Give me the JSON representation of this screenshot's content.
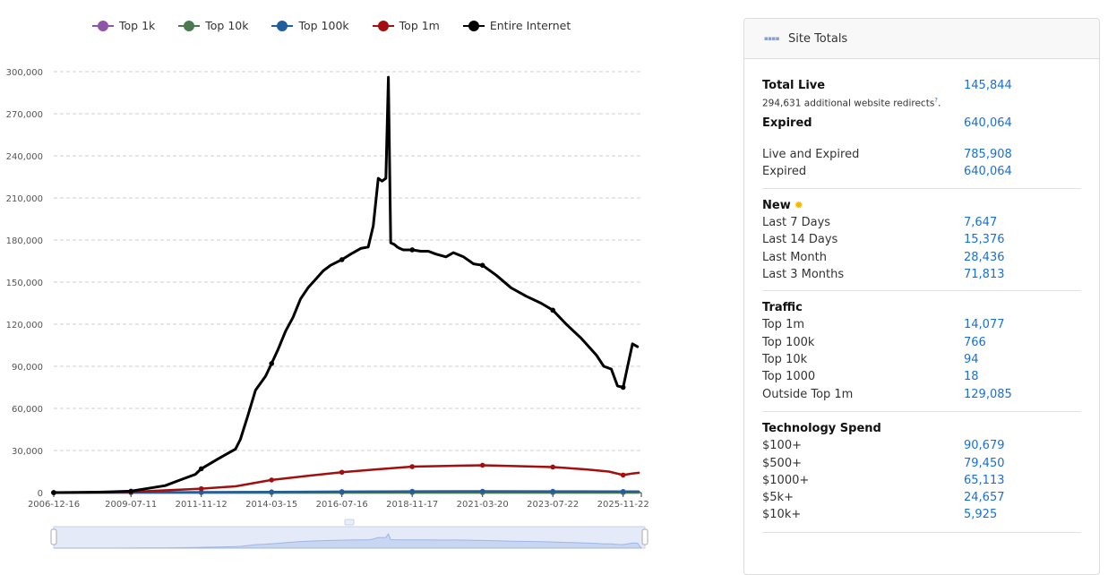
{
  "legend": [
    {
      "name": "Top 1k",
      "color": "#8e54a8"
    },
    {
      "name": "Top 10k",
      "color": "#4b7a50"
    },
    {
      "name": "Top 100k",
      "color": "#245d9e"
    },
    {
      "name": "Top 1m",
      "color": "#a30f0f"
    },
    {
      "name": "Entire Internet",
      "color": "#000000"
    }
  ],
  "chart_data": {
    "type": "line",
    "ylim": [
      0,
      300000
    ],
    "y_ticks": [
      "0",
      "30,000",
      "60,000",
      "90,000",
      "120,000",
      "150,000",
      "180,000",
      "210,000",
      "240,000",
      "270,000",
      "300,000"
    ],
    "x_ticks": [
      {
        "date": "2006-12-16",
        "label": "2006-12-16"
      },
      {
        "date": "2009-07-11",
        "label": "2009-07-11"
      },
      {
        "date": "2011-11-12",
        "label": "2011-11-12"
      },
      {
        "date": "2014-03-15",
        "label": "2014-03-15"
      },
      {
        "date": "2016-07-16",
        "label": "2016-07-16"
      },
      {
        "date": "2018-11-17",
        "label": "2018-11-17"
      },
      {
        "date": "2021-03-20",
        "label": "2021-03-20"
      },
      {
        "date": "2023-07-22",
        "label": "2023-07-22"
      },
      {
        "date": "2025-11-22",
        "label": "2025-11-22"
      }
    ],
    "x_range": [
      "2006-12-16",
      "2026-07-01"
    ],
    "grid": "horizontal dashed",
    "legend_position": "top",
    "series": [
      {
        "name": "Entire Internet",
        "color": "#000000",
        "x": [
          "2006-12-16",
          "2008-06-01",
          "2009-07-11",
          "2010-02-01",
          "2010-09-01",
          "2011-03-01",
          "2011-09-01",
          "2011-11-12",
          "2012-06-01",
          "2013-01-01",
          "2013-03-01",
          "2013-06-01",
          "2013-09-01",
          "2014-01-01",
          "2014-03-15",
          "2014-06-01",
          "2014-09-01",
          "2014-12-01",
          "2015-03-01",
          "2015-06-01",
          "2015-09-01",
          "2015-12-01",
          "2016-03-01",
          "2016-07-16",
          "2016-11-01",
          "2017-03-01",
          "2017-06-01",
          "2017-08-01",
          "2017-10-01",
          "2017-11-15",
          "2018-01-01",
          "2018-02-01",
          "2018-03-01",
          "2018-04-10",
          "2018-05-20",
          "2018-06-20",
          "2018-08-01",
          "2018-11-17",
          "2019-03-01",
          "2019-06-01",
          "2019-09-01",
          "2020-01-01",
          "2020-04-01",
          "2020-08-01",
          "2020-12-01",
          "2021-03-20",
          "2021-09-01",
          "2022-03-01",
          "2022-09-01",
          "2023-03-01",
          "2023-07-22",
          "2024-01-01",
          "2024-07-01",
          "2025-01-01",
          "2025-04-01",
          "2025-07-01",
          "2025-09-15",
          "2025-11-22",
          "2026-01-15",
          "2026-03-15",
          "2026-05-15"
        ],
        "y": [
          0,
          300,
          1000,
          3000,
          5000,
          9000,
          13000,
          17000,
          24000,
          31000,
          38000,
          55000,
          73000,
          83000,
          92000,
          102000,
          115000,
          125000,
          138000,
          146000,
          152000,
          158000,
          162000,
          166000,
          170000,
          174000,
          175000,
          190000,
          224000,
          222000,
          224000,
          296000,
          178000,
          177000,
          175000,
          174000,
          173000,
          173000,
          172000,
          172000,
          170000,
          168000,
          171000,
          168000,
          163000,
          162000,
          155000,
          146000,
          140000,
          135000,
          130000,
          120000,
          110000,
          98000,
          90000,
          88000,
          76000,
          75000,
          90000,
          106000,
          104000
        ]
      },
      {
        "name": "Top 1m",
        "color": "#a30f0f",
        "x": [
          "2006-12-16",
          "2009-07-11",
          "2011-11-12",
          "2013-01-01",
          "2014-03-15",
          "2015-06-01",
          "2016-07-16",
          "2017-09-01",
          "2018-11-17",
          "2020-01-01",
          "2021-03-20",
          "2022-06-01",
          "2023-07-22",
          "2024-09-01",
          "2025-06-01",
          "2025-11-22",
          "2026-03-01",
          "2026-06-01"
        ],
        "y": [
          0,
          500,
          2800,
          4500,
          9000,
          12000,
          14500,
          16500,
          18500,
          19000,
          19500,
          18800,
          18200,
          16500,
          15000,
          12500,
          13500,
          14077
        ]
      },
      {
        "name": "Top 100k",
        "color": "#245d9e",
        "x": [
          "2006-12-16",
          "2009-07-11",
          "2011-11-12",
          "2014-03-15",
          "2016-07-16",
          "2018-11-17",
          "2021-03-20",
          "2023-07-22",
          "2025-11-22",
          "2026-06-01"
        ],
        "y": [
          0,
          100,
          300,
          500,
          700,
          900,
          950,
          900,
          800,
          766
        ]
      },
      {
        "name": "Top 10k",
        "color": "#4b7a50",
        "x": [
          "2006-12-16",
          "2016-07-16",
          "2026-06-01"
        ],
        "y": [
          0,
          80,
          94
        ]
      },
      {
        "name": "Top 1k",
        "color": "#8e54a8",
        "x": [
          "2006-12-16",
          "2016-07-16",
          "2026-06-01"
        ],
        "y": [
          0,
          15,
          18
        ]
      }
    ]
  },
  "panel": {
    "title": "Site Totals",
    "icon": "site-totals-icon",
    "summary": {
      "total_live_label": "Total Live",
      "total_live_value": "145,844",
      "redirects_note": "294,631 additional website redirects",
      "redirects_help": "?",
      "expired_label": "Expired",
      "expired_value": "640,064",
      "live_expired_label": "Live and Expired",
      "live_expired_value": "785,908",
      "expired2_label": "Expired",
      "expired2_value": "640,064"
    },
    "new": {
      "title": "New",
      "rows": [
        {
          "label": "Last 7 Days",
          "value": "7,647"
        },
        {
          "label": "Last 14 Days",
          "value": "15,376"
        },
        {
          "label": "Last Month",
          "value": "28,436"
        },
        {
          "label": "Last 3 Months",
          "value": "71,813"
        }
      ]
    },
    "traffic": {
      "title": "Traffic",
      "rows": [
        {
          "label": "Top 1m",
          "value": "14,077"
        },
        {
          "label": "Top 100k",
          "value": "766"
        },
        {
          "label": "Top 10k",
          "value": "94"
        },
        {
          "label": "Top 1000",
          "value": "18"
        },
        {
          "label": "Outside Top 1m",
          "value": "129,085"
        }
      ]
    },
    "spend": {
      "title": "Technology Spend",
      "rows": [
        {
          "label": "$100+",
          "value": "90,679"
        },
        {
          "label": "$500+",
          "value": "79,450"
        },
        {
          "label": "$1000+",
          "value": "65,113"
        },
        {
          "label": "$5k+",
          "value": "24,657"
        },
        {
          "label": "$10k+",
          "value": "5,925"
        }
      ]
    }
  }
}
